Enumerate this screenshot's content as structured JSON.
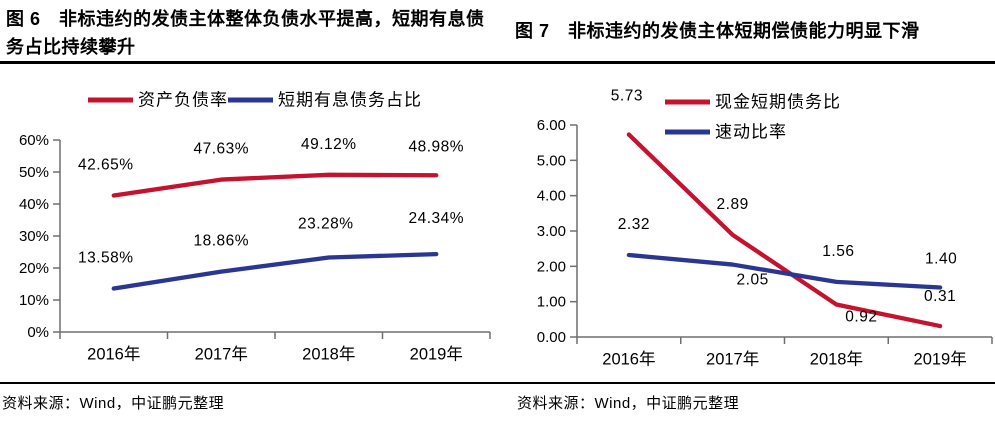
{
  "panels": [
    {
      "source": "资料来源：Wind，中证鹏元整理"
    },
    {
      "source": "资料来源：Wind，中证鹏元整理"
    }
  ],
  "colors": {
    "red": "#c4122f",
    "blue": "#2b3692",
    "axis": "#6f6f6f"
  },
  "chart_data": [
    {
      "type": "line",
      "title": "图 6　非标违约的发债主体整体负债水平提高，短期有息债务占比持续攀升",
      "categories": [
        "2016年",
        "2017年",
        "2018年",
        "2019年"
      ],
      "series": [
        {
          "name": "资产负债率",
          "color": "#c4122f",
          "values": [
            42.65,
            47.63,
            49.12,
            48.98
          ],
          "labels": [
            "42.65%",
            "47.63%",
            "49.12%",
            "48.98%"
          ]
        },
        {
          "name": "短期有息债务占比",
          "color": "#2b3692",
          "values": [
            13.58,
            18.86,
            23.28,
            24.34
          ],
          "labels": [
            "13.58%",
            "18.86%",
            "23.28%",
            "24.34%"
          ]
        }
      ],
      "ylim": [
        0,
        60
      ],
      "ytick_labels": [
        "0%",
        "10%",
        "20%",
        "30%",
        "40%",
        "50%",
        "60%"
      ],
      "xlabel": "",
      "ylabel": "",
      "legend_position": "top",
      "grid": false
    },
    {
      "type": "line",
      "title": "图 7　非标违约的发债主体短期偿债能力明显下滑",
      "categories": [
        "2016年",
        "2017年",
        "2018年",
        "2019年"
      ],
      "series": [
        {
          "name": "现金短期债务比",
          "color": "#c4122f",
          "values": [
            5.73,
            2.89,
            0.92,
            0.31
          ],
          "labels": [
            "5.73",
            "2.89",
            "0.92",
            "0.31"
          ]
        },
        {
          "name": "速动比率",
          "color": "#2b3692",
          "values": [
            2.32,
            2.05,
            1.56,
            1.4
          ],
          "labels": [
            "2.32",
            "2.05",
            "1.56",
            "1.40"
          ]
        }
      ],
      "ylim": [
        0,
        6
      ],
      "ytick_labels": [
        "0.00",
        "1.00",
        "2.00",
        "3.00",
        "4.00",
        "5.00",
        "6.00"
      ],
      "xlabel": "",
      "ylabel": "",
      "legend_position": "top-right",
      "grid": false
    }
  ]
}
